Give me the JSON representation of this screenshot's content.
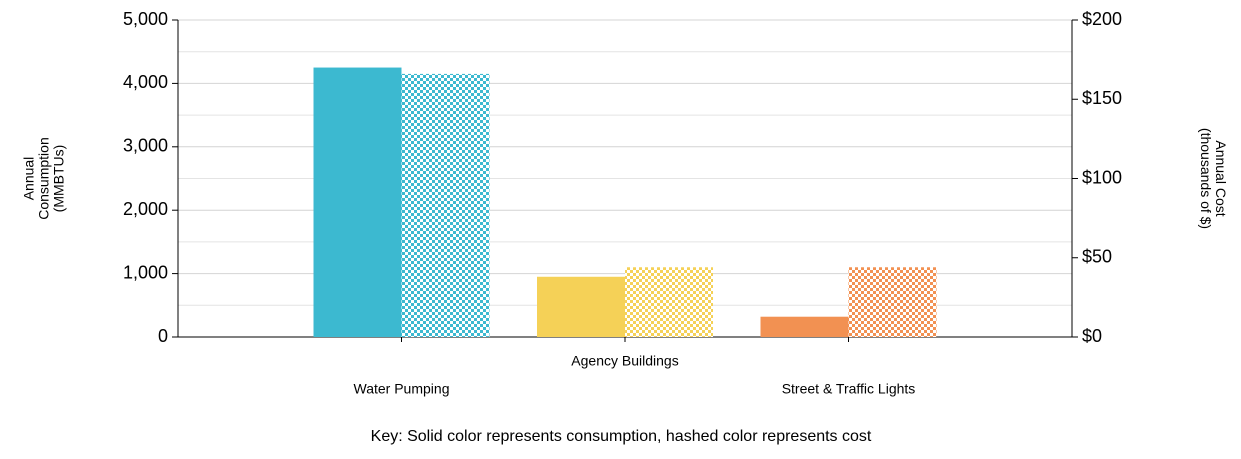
{
  "chart_data": {
    "type": "bar",
    "categories": [
      "Water Pumping",
      "Agency Buildings",
      "Street & Traffic Lights"
    ],
    "colors": [
      "#3cb9d0",
      "#f5d157",
      "#f29152"
    ],
    "series": [
      {
        "values": [
          4250,
          950,
          320
        ]
      },
      {
        "values": [
          166,
          44,
          44
        ],
        "axis": "y2",
        "hatched": true
      }
    ],
    "ylim": [
      0,
      5000
    ],
    "yticks": [
      0,
      {
        "value": 1000,
        "label": "1,000"
      },
      {
        "value": 2000,
        "label": "2,000"
      },
      {
        "value": 3000,
        "label": "3,000"
      },
      {
        "value": 4000,
        "label": "4,000"
      },
      {
        "value": 5000,
        "label": "5,000"
      }
    ],
    "minor_grid": [
      500,
      1500,
      2500,
      3500,
      4500
    ],
    "y2lim": [
      0,
      200
    ],
    "y2ticks": [
      {
        "value": 0,
        "label": "$0"
      },
      {
        "value": 50,
        "label": "$50"
      },
      {
        "value": 100,
        "label": "$100"
      },
      {
        "value": 150,
        "label": "$150"
      },
      {
        "value": 200,
        "label": "$200"
      }
    ],
    "ylabel": [
      "Annual",
      "Consumption",
      "(MMBTUs)"
    ],
    "y2label": [
      "Annual Cost",
      "(thousands of $)"
    ],
    "grid": true,
    "note": "Key: Solid color represents consumption, hashed color represents cost"
  }
}
